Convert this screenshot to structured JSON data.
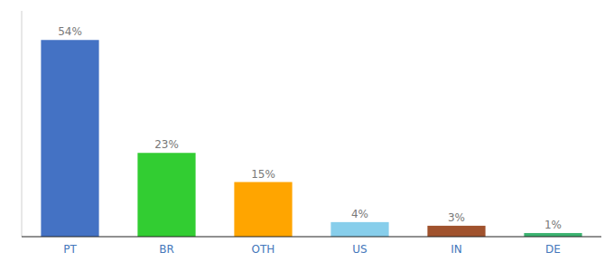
{
  "chart_data": {
    "type": "bar",
    "categories": [
      "PT",
      "BR",
      "OTH",
      "US",
      "IN",
      "DE"
    ],
    "values": [
      54,
      23,
      15,
      4,
      3,
      1
    ],
    "value_labels": [
      "54%",
      "23%",
      "15%",
      "4%",
      "3%",
      "1%"
    ],
    "colors": [
      "#4472C4",
      "#32CD32",
      "#FFA500",
      "#87CEEB",
      "#A0522D",
      "#3CB371"
    ],
    "ylim": [
      0,
      62
    ],
    "data_labels": true,
    "tick_labels": "x",
    "grid": false
  }
}
